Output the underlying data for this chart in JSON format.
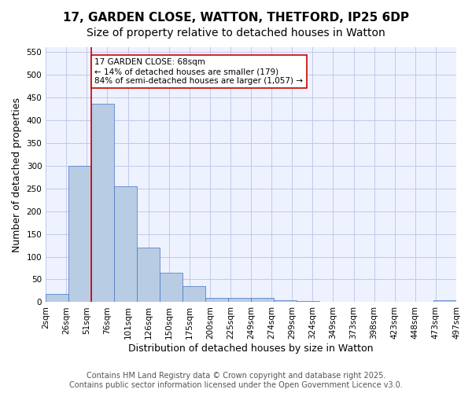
{
  "title_line1": "17, GARDEN CLOSE, WATTON, THETFORD, IP25 6DP",
  "title_line2": "Size of property relative to detached houses in Watton",
  "xlabel": "Distribution of detached houses by size in Watton",
  "ylabel": "Number of detached properties",
  "bar_values": [
    18,
    300,
    435,
    255,
    120,
    65,
    35,
    10,
    10,
    10,
    5,
    3,
    0,
    0,
    0,
    0,
    0,
    5
  ],
  "bin_labels": [
    "2sqm",
    "26sqm",
    "51sqm",
    "76sqm",
    "101sqm",
    "126sqm",
    "150sqm",
    "175sqm",
    "200sqm",
    "225sqm",
    "249sqm",
    "274sqm",
    "299sqm",
    "324sqm",
    "349sqm",
    "373sqm",
    "398sqm",
    "423sqm",
    "448sqm",
    "473sqm",
    "497sqm"
  ],
  "bar_color": "#b8cce4",
  "bar_edge_color": "#4472c4",
  "bar_width": 1.0,
  "ylim": [
    0,
    560
  ],
  "yticks": [
    0,
    50,
    100,
    150,
    200,
    250,
    300,
    350,
    400,
    450,
    500,
    550
  ],
  "red_line_x": 2,
  "annotation_text": "17 GARDEN CLOSE: 68sqm\n← 14% of detached houses are smaller (179)\n84% of semi-detached houses are larger (1,057) →",
  "annotation_box_color": "#ffffff",
  "annotation_box_edge": "#cc0000",
  "footer_line1": "Contains HM Land Registry data © Crown copyright and database right 2025.",
  "footer_line2": "Contains public sector information licensed under the Open Government Licence v3.0.",
  "bg_color": "#eef2ff",
  "grid_color": "#c0c8e8",
  "title_fontsize": 11,
  "axis_fontsize": 9,
  "tick_fontsize": 7.5,
  "footer_fontsize": 7
}
